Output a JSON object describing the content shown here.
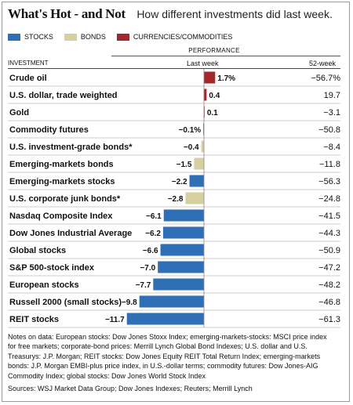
{
  "title": "What's Hot - and Not",
  "subtitle": "How different investments did last week.",
  "legend": [
    {
      "label": "STOCKS",
      "color": "#2e6fb5"
    },
    {
      "label": "BONDS",
      "color": "#d6d0a0"
    },
    {
      "label": "CURRENCIES/COMMODITIES",
      "color": "#a3282b"
    }
  ],
  "header": {
    "performance": "PERFORMANCE",
    "investment": "INVESTMENT",
    "last_week": "Last week",
    "week52": "52-week"
  },
  "chart_data": {
    "type": "bar",
    "title": "What's Hot - and Not",
    "categories": [
      "Crude oil",
      "U.S. dollar, trade weighted",
      "Gold",
      "Commodity futures",
      "U.S. investment-grade bonds*",
      "Emerging-markets bonds",
      "Emerging-markets stocks",
      "U.S. corporate junk bonds*",
      "Nasdaq Composite Index",
      "Dow Jones Industrial Average",
      "Global stocks",
      "S&P 500-stock index",
      "European stocks",
      "Russell 2000 (small stocks)",
      "REIT stocks"
    ],
    "groups": [
      "currency",
      "currency",
      "currency",
      "currency",
      "bond",
      "bond",
      "stock",
      "bond",
      "stock",
      "stock",
      "stock",
      "stock",
      "stock",
      "stock",
      "stock"
    ],
    "last_week": [
      1.7,
      0.4,
      0.1,
      -0.1,
      -0.4,
      -1.5,
      -2.2,
      -2.8,
      -6.1,
      -6.2,
      -6.6,
      -7.0,
      -7.7,
      -9.8,
      -11.7
    ],
    "last_week_labels": [
      "1.7%",
      "0.4",
      "0.1",
      "−0.1%",
      "−0.4",
      "−1.5",
      "−2.2",
      "−2.8",
      "−6.1",
      "−6.2",
      "−6.6",
      "−7.0",
      "−7.7",
      "−9.8",
      "−11.7"
    ],
    "week52": [
      -56.7,
      19.7,
      -3.1,
      -50.8,
      -8.4,
      -11.8,
      -56.3,
      -24.8,
      -41.5,
      -44.3,
      -50.9,
      -47.2,
      -48.2,
      -46.8,
      -61.3
    ],
    "week52_labels": [
      "−56.7%",
      "19.7",
      "−3.1",
      "−50.8",
      "−8.4",
      "−11.8",
      "−56.3",
      "−24.8",
      "−41.5",
      "−44.3",
      "−50.9",
      "−47.2",
      "−48.2",
      "−46.8",
      "−61.3"
    ],
    "colors": {
      "stock": "#2e6fb5",
      "bond": "#d6d0a0",
      "currency": "#a3282b"
    }
  },
  "notes": "Notes on data: European stocks: Dow Jones Stoxx Index; emerging-markets-stocks: MSCI price index for free markets; corporate-bond prices: Merrill Lynch Global Bond Indexes; U.S. dollar and U.S. Treasurys: J.P. Morgan; REIT stocks: Dow Jones Equity REIT Total Return Index; emerging-markets bonds: J.P. Morgan EMBI-plus price index, in U.S.-dollar terms; commodity futures: Dow Jones-AIG Commodity Index; global stocks: Dow Jones World Stock Index",
  "sources": "Sources: WSJ Market Data Group; Dow Jones Indexes; Reuters; Merrill Lynch"
}
